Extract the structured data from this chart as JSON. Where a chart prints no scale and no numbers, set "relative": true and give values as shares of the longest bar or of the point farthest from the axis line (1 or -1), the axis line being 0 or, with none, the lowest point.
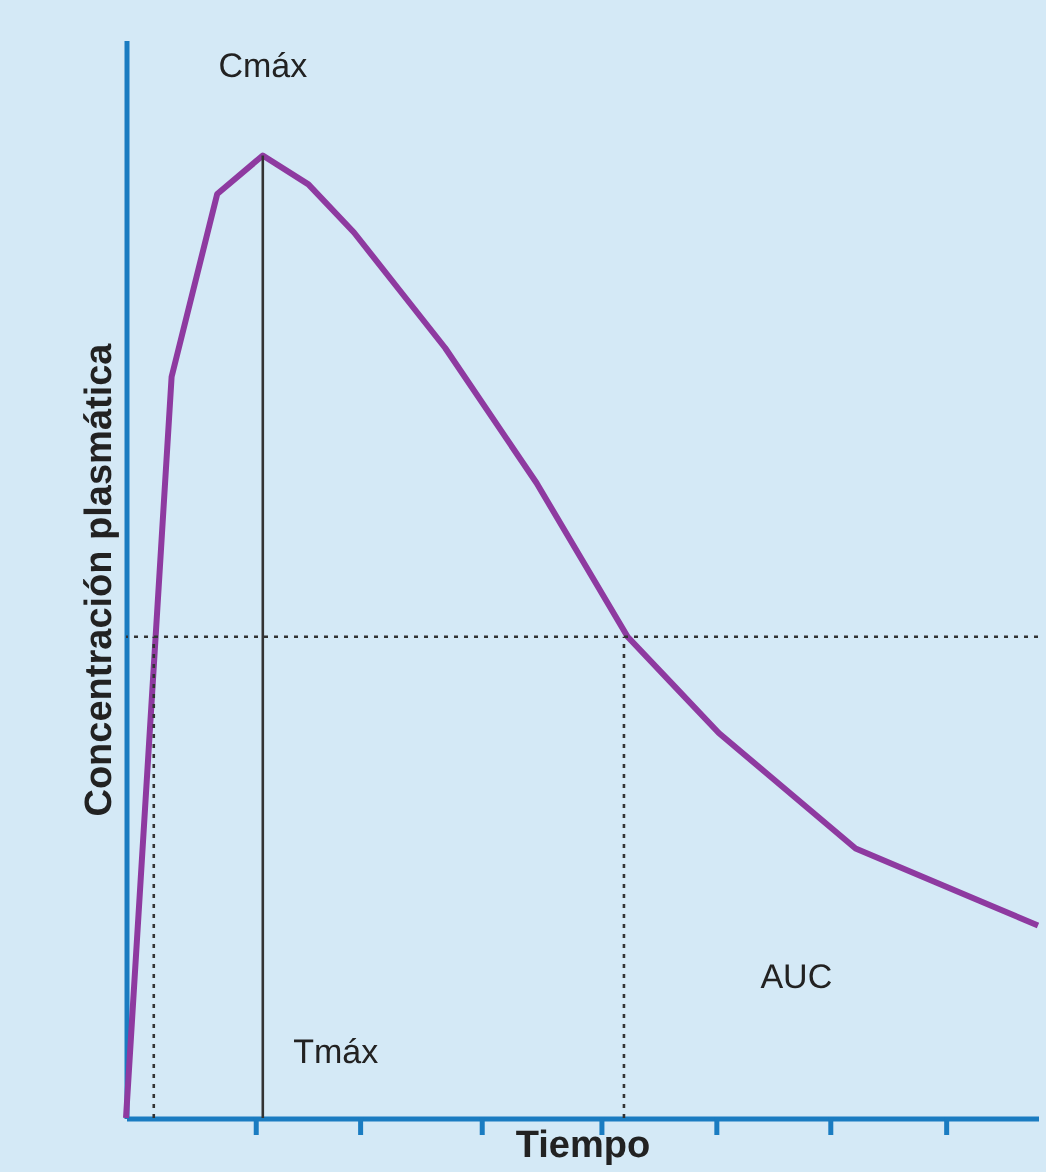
{
  "chart_data": {
    "type": "line",
    "relative": true,
    "xlabel": "Tiempo",
    "ylabel": "Concentración plasmática",
    "categories": [
      null,
      null,
      null,
      null,
      null,
      null,
      null,
      null,
      null,
      null,
      null,
      null,
      null,
      null,
      null,
      null,
      null,
      null,
      null,
      null,
      null
    ],
    "tick_labels": false,
    "series": [
      {
        "color": "#8e3aa0",
        "values": [
          0,
          0.77,
          0.96,
          1.0,
          0.97,
          0.92,
          0.86,
          0.8,
          0.73,
          0.66,
          0.58,
          0.5,
          0.45,
          0.4,
          0.36,
          0.32,
          0.28,
          0.26,
          0.24,
          0.22,
          0.2
        ]
      }
    ],
    "ref_lines": [
      {
        "axis": "y",
        "value": 0.5,
        "line_style": "dotted",
        "color": "#333333"
      }
    ],
    "annotations": [
      "Cmáx",
      "Tmáx",
      "AUC"
    ],
    "line_style": "solid",
    "marker": "none"
  }
}
